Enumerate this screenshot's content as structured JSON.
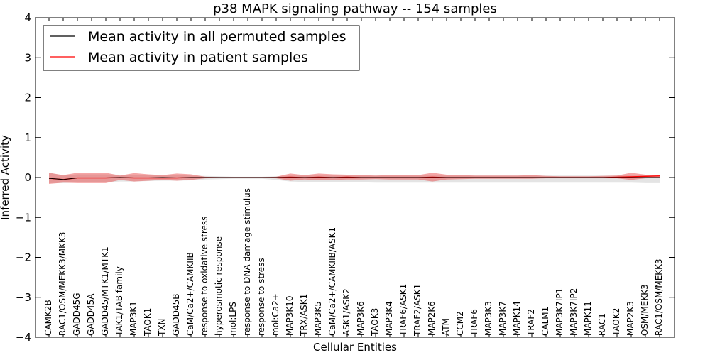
{
  "chart_data": {
    "type": "line",
    "title": "p38 MAPK signaling pathway -- 154 samples",
    "xlabel": "Cellular Entities",
    "ylabel": "Inferred Activity",
    "ylim": [
      -4,
      4
    ],
    "yticks": [
      4,
      3,
      2,
      1,
      0,
      -1,
      -2,
      -3,
      -4
    ],
    "ytick_labels": [
      "4",
      "3",
      "2",
      "1",
      "0",
      "−1",
      "−2",
      "−3",
      "−4"
    ],
    "grid": false,
    "legend_position": "top-left",
    "categories": [
      "CAMK2B",
      "RAC1/OSM/MEKK3/MKK3",
      "GADD45G",
      "GADD45A",
      "GADD45/MTK1/MTK1",
      "TAK1/TAB family",
      "MAP3K1",
      "TAOK1",
      "TXN",
      "GADD45B",
      "CaM/Ca2+/CAMKIIB",
      "response to oxidative stress",
      "hyperosmotic response",
      "mol:LPS",
      "response to DNA damage stimulus",
      "response to stress",
      "mol:Ca2+",
      "MAP3K10",
      "TRX/ASK1",
      "MAP3K5",
      "CaM/Ca2+/CAMKIIB/ASK1",
      "ASK1/ASK2",
      "MAP3K6",
      "TAOK3",
      "MAP3K4",
      "TRAF6/ASK1",
      "TRAF2/ASK1",
      "MAP2K6",
      "ATM",
      "CCM2",
      "TRAF6",
      "MAP3K3",
      "MAP3K7",
      "MAPK14",
      "TRAF2",
      "CALM1",
      "MAP3K7IP1",
      "MAP3K7IP2",
      "MAPK11",
      "RAC1",
      "TAOK2",
      "MAP2K3",
      "OSM/MEKK3",
      "RAC1/OSM/MEKK3"
    ],
    "series": [
      {
        "name": "Mean activity in all permuted samples",
        "color": "#000000",
        "values": [
          -0.02,
          -0.05,
          -0.01,
          -0.01,
          -0.01,
          0.0,
          -0.01,
          -0.01,
          0.0,
          -0.01,
          0.0,
          0.0,
          0.0,
          0.0,
          0.0,
          0.0,
          0.0,
          0.0,
          0.0,
          0.0,
          0.0,
          0.0,
          0.0,
          0.0,
          0.0,
          0.0,
          0.0,
          0.0,
          0.0,
          0.0,
          0.0,
          0.0,
          0.0,
          0.0,
          0.0,
          0.0,
          0.0,
          0.0,
          0.0,
          0.0,
          0.0,
          0.0,
          0.0,
          0.0
        ],
        "band_upper": [
          0.12,
          0.05,
          0.08,
          0.08,
          0.08,
          0.07,
          0.07,
          0.06,
          0.05,
          0.06,
          0.05,
          0.04,
          0.03,
          0.02,
          0.02,
          0.02,
          0.03,
          0.05,
          0.05,
          0.05,
          0.05,
          0.05,
          0.05,
          0.05,
          0.05,
          0.05,
          0.05,
          0.05,
          0.05,
          0.05,
          0.05,
          0.05,
          0.05,
          0.05,
          0.05,
          0.05,
          0.05,
          0.05,
          0.05,
          0.05,
          0.05,
          0.05,
          0.05,
          0.05
        ],
        "band_lower": [
          -0.14,
          -0.14,
          -0.12,
          -0.12,
          -0.12,
          -0.1,
          -0.1,
          -0.09,
          -0.08,
          -0.08,
          -0.07,
          -0.05,
          -0.04,
          -0.03,
          -0.03,
          -0.03,
          -0.06,
          -0.1,
          -0.11,
          -0.12,
          -0.12,
          -0.12,
          -0.12,
          -0.13,
          -0.13,
          -0.13,
          -0.13,
          -0.13,
          -0.13,
          -0.13,
          -0.13,
          -0.13,
          -0.13,
          -0.13,
          -0.13,
          -0.13,
          -0.13,
          -0.13,
          -0.13,
          -0.13,
          -0.13,
          -0.13,
          -0.14,
          -0.14
        ]
      },
      {
        "name": "Mean activity in patient samples",
        "color": "#ff0000",
        "values": [
          -0.02,
          -0.05,
          -0.01,
          -0.01,
          -0.01,
          0.0,
          -0.01,
          -0.01,
          -0.01,
          -0.01,
          0.0,
          0.0,
          0.0,
          0.0,
          0.0,
          0.0,
          0.0,
          0.01,
          0.0,
          0.01,
          0.0,
          0.01,
          0.0,
          0.0,
          0.0,
          0.0,
          0.0,
          0.01,
          0.0,
          0.0,
          0.0,
          0.0,
          0.0,
          0.0,
          0.0,
          0.0,
          0.0,
          0.0,
          0.0,
          0.0,
          0.01,
          0.02,
          0.03,
          0.04
        ],
        "band_upper": [
          0.12,
          0.06,
          0.12,
          0.12,
          0.12,
          0.05,
          0.11,
          0.08,
          0.06,
          0.1,
          0.08,
          0.02,
          0.01,
          0.01,
          0.01,
          0.01,
          0.02,
          0.1,
          0.06,
          0.1,
          0.08,
          0.07,
          0.06,
          0.05,
          0.06,
          0.06,
          0.06,
          0.12,
          0.07,
          0.06,
          0.05,
          0.05,
          0.05,
          0.05,
          0.06,
          0.04,
          0.03,
          0.03,
          0.03,
          0.04,
          0.05,
          0.12,
          0.07,
          0.06
        ],
        "band_lower": [
          -0.16,
          -0.13,
          -0.14,
          -0.14,
          -0.14,
          -0.06,
          -0.1,
          -0.08,
          -0.06,
          -0.08,
          -0.06,
          -0.02,
          -0.01,
          -0.01,
          -0.01,
          -0.01,
          -0.02,
          -0.08,
          -0.05,
          -0.07,
          -0.06,
          -0.05,
          -0.05,
          -0.04,
          -0.05,
          -0.05,
          -0.05,
          -0.1,
          -0.05,
          -0.04,
          -0.03,
          -0.03,
          -0.03,
          -0.03,
          -0.03,
          -0.02,
          -0.02,
          -0.02,
          -0.02,
          -0.02,
          -0.02,
          -0.06,
          -0.02,
          -0.01
        ]
      }
    ]
  }
}
